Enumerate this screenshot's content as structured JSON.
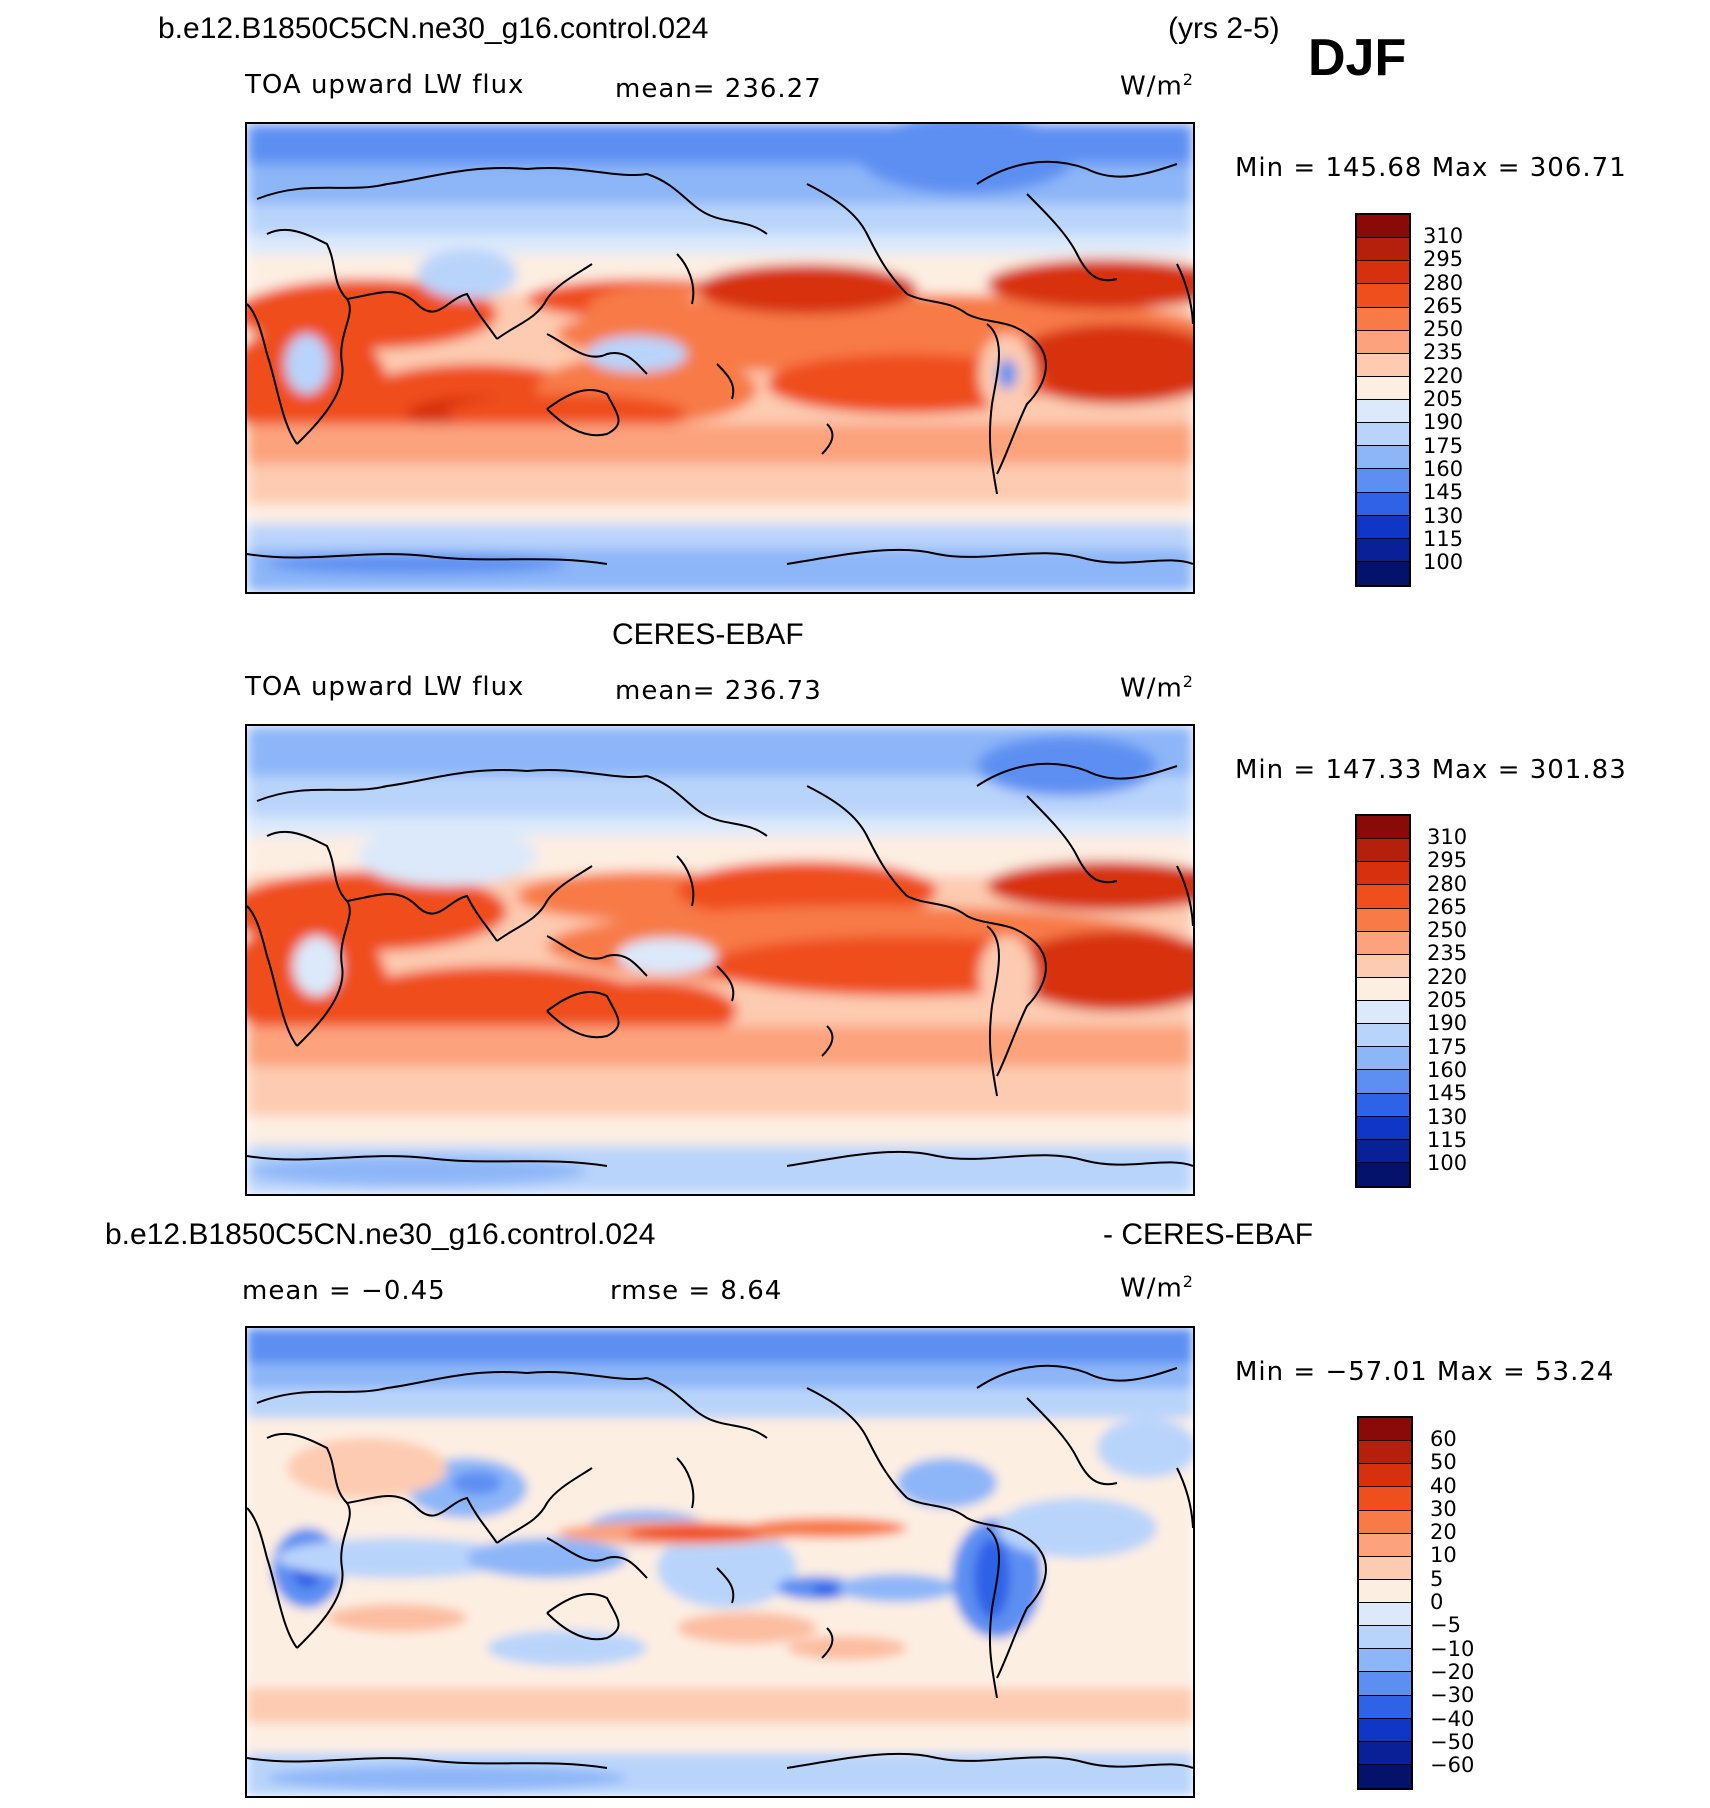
{
  "header": {
    "case_name": "b.e12.B1850C5CN.ne30_g16.control.024",
    "years": "(yrs 2-5)",
    "season": "DJF"
  },
  "panels": [
    {
      "id": "model",
      "title": "",
      "variable": "TOA upward LW flux",
      "mean_text": "mean=  236.27",
      "units": "W/m",
      "units_sup": "2",
      "minmax": "Min  =  145.68  Max  =  306.71",
      "colorbar": {
        "labels": [
          "310",
          "295",
          "280",
          "265",
          "250",
          "235",
          "220",
          "205",
          "190",
          "175",
          "160",
          "145",
          "130",
          "115",
          "100"
        ],
        "colors": [
          "#8a0a0a",
          "#b5200c",
          "#d7300f",
          "#ef4e1d",
          "#f77a47",
          "#fca27d",
          "#fdcbb1",
          "#fdeee2",
          "#dbe9fb",
          "#b9d4fb",
          "#8db6f8",
          "#5d8ff2",
          "#2f62e6",
          "#1036c7",
          "#0a2096",
          "#05126b"
        ]
      }
    },
    {
      "id": "obs",
      "title": "CERES-EBAF",
      "variable": "TOA upward LW flux",
      "mean_text": "mean=  236.73",
      "units": "W/m",
      "units_sup": "2",
      "minmax": "Min  =  147.33  Max  =  301.83",
      "colorbar": {
        "labels": [
          "310",
          "295",
          "280",
          "265",
          "250",
          "235",
          "220",
          "205",
          "190",
          "175",
          "160",
          "145",
          "130",
          "115",
          "100"
        ],
        "colors": [
          "#8a0a0a",
          "#b5200c",
          "#d7300f",
          "#ef4e1d",
          "#f77a47",
          "#fca27d",
          "#fdcbb1",
          "#fdeee2",
          "#dbe9fb",
          "#b9d4fb",
          "#8db6f8",
          "#5d8ff2",
          "#2f62e6",
          "#1036c7",
          "#0a2096",
          "#05126b"
        ]
      }
    },
    {
      "id": "diff",
      "title_left": "b.e12.B1850C5CN.ne30_g16.control.024",
      "title_right": "- CERES-EBAF",
      "mean_text": "mean  =    −0.45",
      "rmse_text": "rmse  =     8.64",
      "units": "W/m",
      "units_sup": "2",
      "minmax": "Min  =  −57.01  Max  =    53.24",
      "colorbar": {
        "labels": [
          "60",
          "50",
          "40",
          "30",
          "20",
          "10",
          "5",
          "0",
          "−5",
          "−10",
          "−20",
          "−30",
          "−40",
          "−50",
          "−60"
        ],
        "colors": [
          "#8a0a0a",
          "#b5200c",
          "#d7300f",
          "#ef4e1d",
          "#f77a47",
          "#fca27d",
          "#fdcbb1",
          "#fdeee2",
          "#dbe9fb",
          "#b9d4fb",
          "#8db6f8",
          "#5d8ff2",
          "#2f62e6",
          "#1036c7",
          "#0a2096",
          "#05126b"
        ]
      }
    }
  ]
}
